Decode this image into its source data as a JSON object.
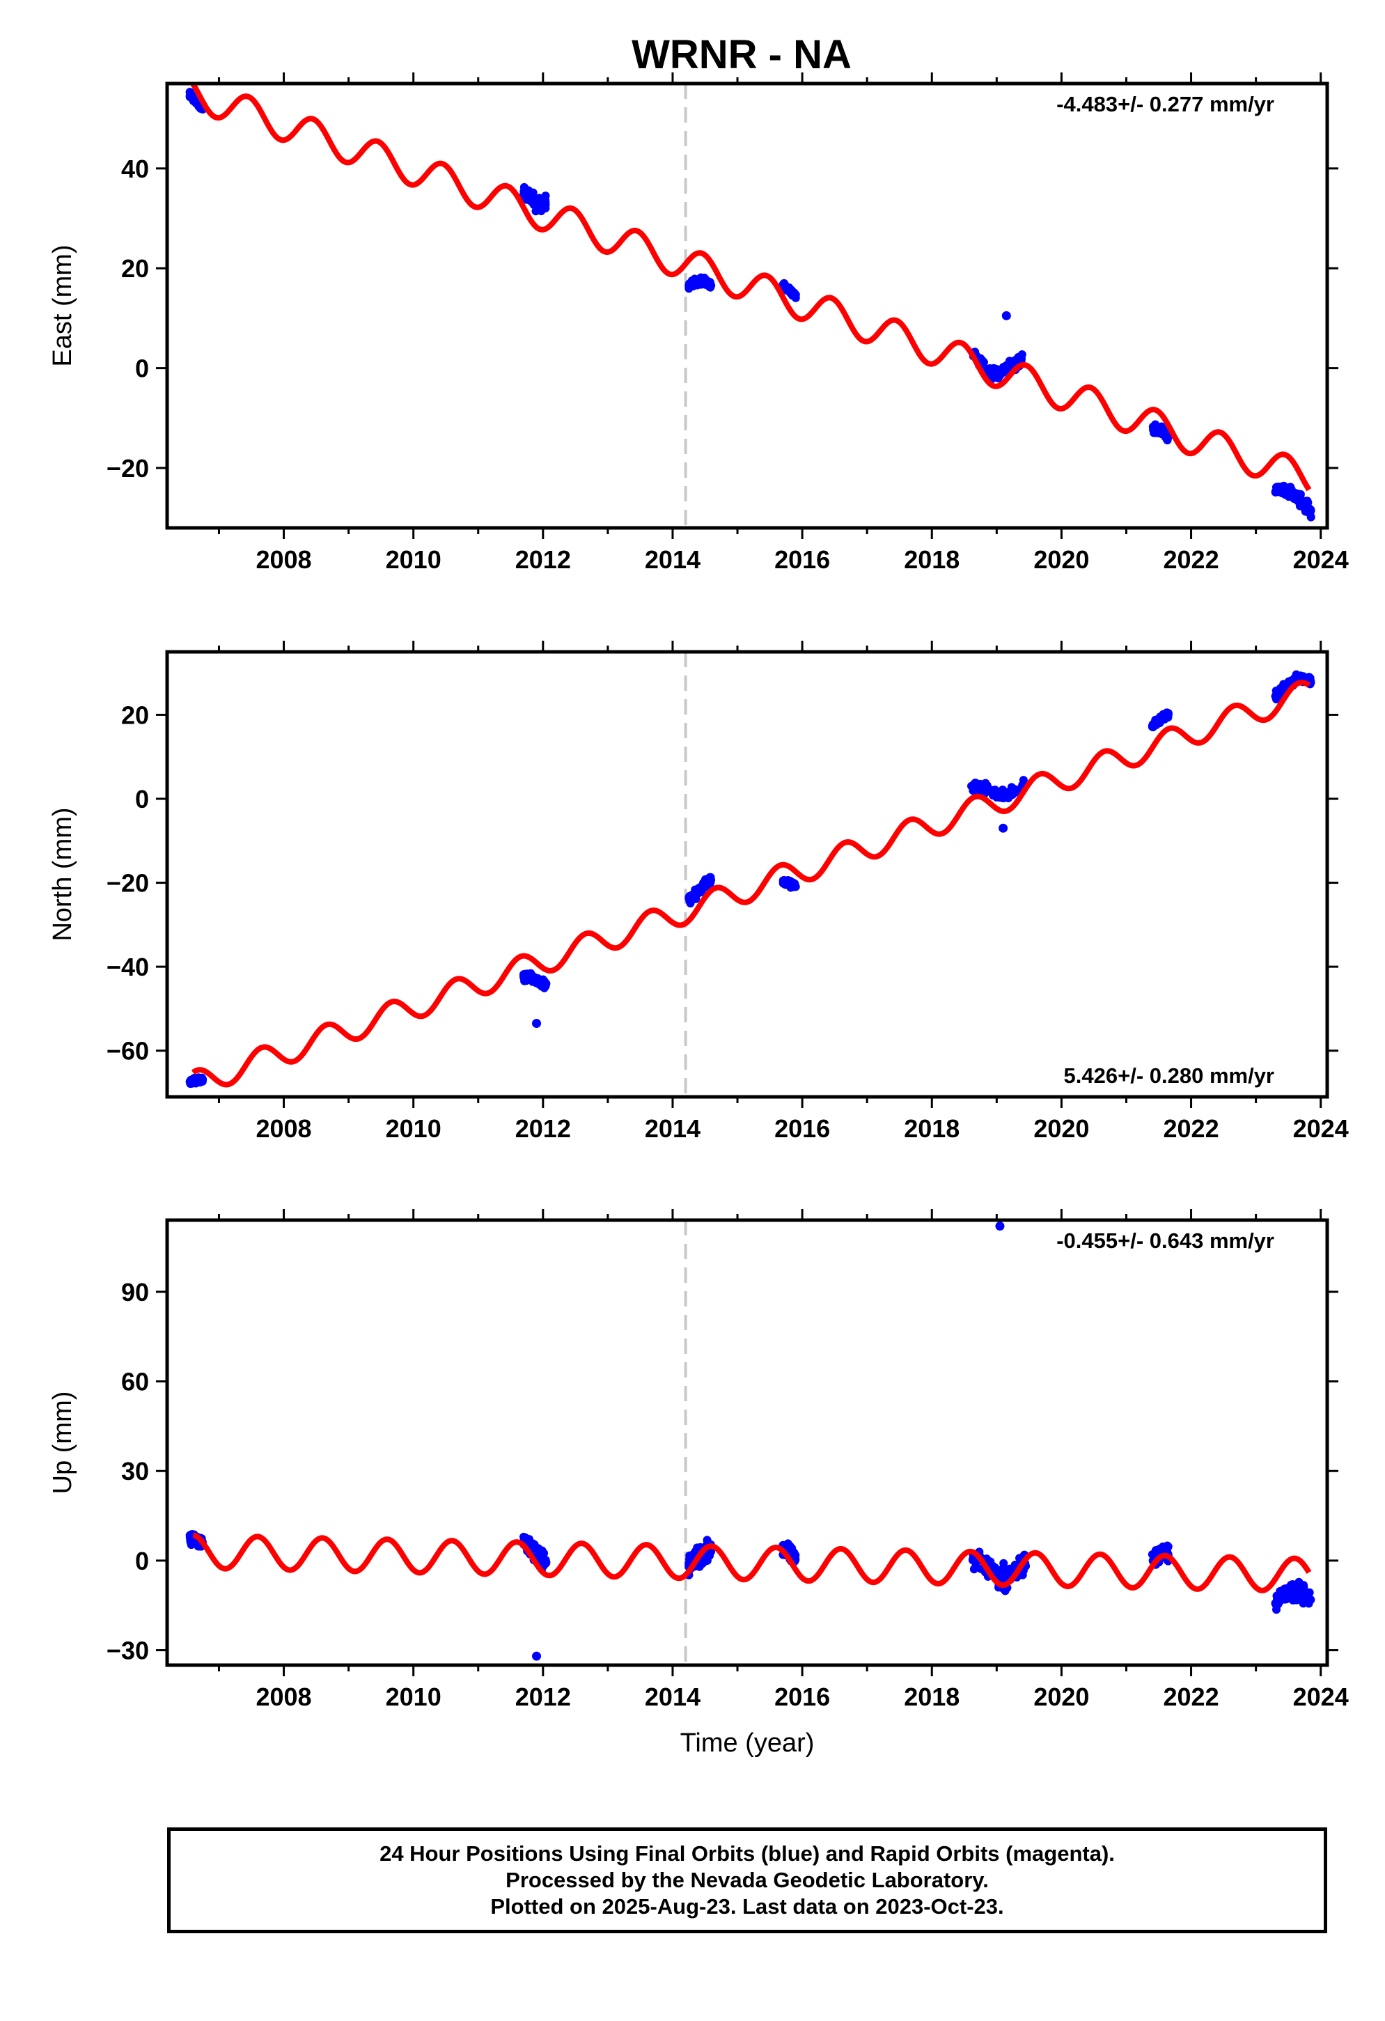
{
  "chart_data": {
    "type": "scatter",
    "title": "WRNR - NA",
    "xlabel": "Time (year)",
    "xlim": [
      2006.2,
      2024.1
    ],
    "x_ticks": [
      "2008",
      "2010",
      "2012",
      "2014",
      "2016",
      "2018",
      "2020",
      "2022",
      "2024"
    ],
    "x_tick_values": [
      2008,
      2010,
      2012,
      2014,
      2016,
      2018,
      2020,
      2022,
      2024
    ],
    "vertical_dashed_line_x": 2014.2,
    "colors": {
      "observations": "#0000ff",
      "model": "#ff0000",
      "event_line": "#c8c8c8"
    },
    "panels": [
      {
        "name": "east",
        "ylabel": "East (mm)",
        "ylim": [
          -32,
          57
        ],
        "y_ticks": [
          "−20",
          "0",
          "20",
          "40"
        ],
        "y_tick_values": [
          -20,
          0,
          20,
          40
        ],
        "rate_label": "-4.483+/- 0.277 mm/yr",
        "rate_label_position": "top-right",
        "model": {
          "t0": 2006.6,
          "y0": 55,
          "rate": -4.483,
          "seasonal_amplitude": 3.2,
          "phase": 2.5
        },
        "clusters": [
          {
            "x_range": [
              2006.55,
              2006.75
            ],
            "y_center": 53.5,
            "spread": 1.6
          },
          {
            "x_range": [
              2011.7,
              2012.05
            ],
            "y_center": 33.5,
            "spread": 3.0
          },
          {
            "x_range": [
              2014.25,
              2014.6
            ],
            "y_center": 17.5,
            "spread": 2.0
          },
          {
            "x_range": [
              2015.7,
              2015.9
            ],
            "y_center": 15.5,
            "spread": 1.2
          },
          {
            "x_range": [
              2018.6,
              2019.4
            ],
            "y_center": -1.0,
            "spread": 3.0
          },
          {
            "x_range": [
              2021.4,
              2021.65
            ],
            "y_center": -12.5,
            "spread": 2.0
          },
          {
            "x_range": [
              2023.3,
              2023.85
            ],
            "y_center": -25.0,
            "spread": 2.5
          }
        ],
        "outliers": [
          {
            "x": 2019.15,
            "y": 10.5
          }
        ]
      },
      {
        "name": "north",
        "ylabel": "North (mm)",
        "ylim": [
          -71,
          35
        ],
        "y_ticks": [
          "−60",
          "−40",
          "−20",
          "0",
          "20"
        ],
        "y_tick_values": [
          -60,
          -40,
          -20,
          0,
          20
        ],
        "rate_label": "5.426+/- 0.280 mm/yr",
        "rate_label_position": "bottom-right",
        "model": {
          "t0": 2006.6,
          "y0": -68,
          "rate": 5.426,
          "seasonal_amplitude": 3.0,
          "phase": 1.2
        },
        "clusters": [
          {
            "x_range": [
              2006.55,
              2006.75
            ],
            "y_center": -67.0,
            "spread": 1.5
          },
          {
            "x_range": [
              2011.7,
              2012.05
            ],
            "y_center": -43.0,
            "spread": 2.5
          },
          {
            "x_range": [
              2014.25,
              2014.6
            ],
            "y_center": -21.5,
            "spread": 2.5
          },
          {
            "x_range": [
              2015.7,
              2015.9
            ],
            "y_center": -20.0,
            "spread": 1.5
          },
          {
            "x_range": [
              2018.6,
              2019.45
            ],
            "y_center": 1.0,
            "spread": 3.0
          },
          {
            "x_range": [
              2021.4,
              2021.65
            ],
            "y_center": 19.0,
            "spread": 1.5
          },
          {
            "x_range": [
              2023.3,
              2023.85
            ],
            "y_center": 28.0,
            "spread": 2.5
          }
        ],
        "outliers": [
          {
            "x": 2011.9,
            "y": -53.5
          },
          {
            "x": 2019.1,
            "y": -7.0
          }
        ]
      },
      {
        "name": "up",
        "ylabel": "Up (mm)",
        "ylim": [
          -35,
          114
        ],
        "y_ticks": [
          "−30",
          "0",
          "30",
          "60",
          "90"
        ],
        "y_tick_values": [
          -30,
          0,
          30,
          60,
          90
        ],
        "rate_label": "-0.455+/- 0.643 mm/yr",
        "rate_label_position": "top-right",
        "model": {
          "t0": 2006.6,
          "y0": 3,
          "rate": -0.455,
          "seasonal_amplitude": 5.5,
          "phase": 1.6
        },
        "clusters": [
          {
            "x_range": [
              2006.55,
              2006.75
            ],
            "y_center": 7.0,
            "spread": 4.0
          },
          {
            "x_range": [
              2011.7,
              2012.05
            ],
            "y_center": 3.0,
            "spread": 7.0
          },
          {
            "x_range": [
              2014.25,
              2014.6
            ],
            "y_center": 2.0,
            "spread": 8.0
          },
          {
            "x_range": [
              2015.7,
              2015.9
            ],
            "y_center": 3.0,
            "spread": 5.0
          },
          {
            "x_range": [
              2018.6,
              2019.45
            ],
            "y_center": -5.0,
            "spread": 9.0
          },
          {
            "x_range": [
              2021.4,
              2021.65
            ],
            "y_center": 2.0,
            "spread": 5.0
          },
          {
            "x_range": [
              2023.3,
              2023.85
            ],
            "y_center": -10.0,
            "spread": 7.0
          }
        ],
        "outliers": [
          {
            "x": 2019.05,
            "y": 112
          },
          {
            "x": 2011.9,
            "y": -32
          }
        ]
      }
    ]
  },
  "footer": {
    "line1": "24 Hour Positions Using Final Orbits (blue) and Rapid Orbits (magenta).",
    "line2": "Processed by the Nevada Geodetic Laboratory.",
    "line3": "Plotted on 2025-Aug-23. Last data on 2023-Oct-23."
  }
}
